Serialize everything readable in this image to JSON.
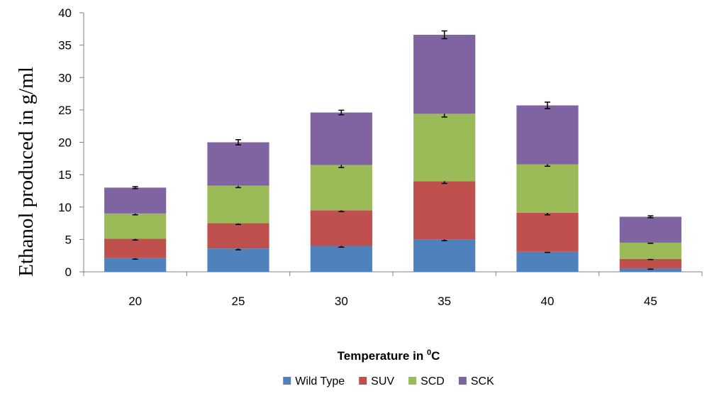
{
  "chart_data": {
    "type": "bar",
    "stacked": true,
    "categories": [
      "20",
      "25",
      "30",
      "35",
      "40",
      "45"
    ],
    "series": [
      {
        "name": "Wild Type",
        "color": "#4F81BD",
        "values": [
          2.1,
          3.6,
          4.0,
          5.0,
          3.1,
          0.5
        ],
        "error": [
          0.15,
          0.2,
          0.2,
          0.2,
          0.1,
          0.1
        ]
      },
      {
        "name": "SUV",
        "color": "#C0504D",
        "values": [
          3.0,
          3.9,
          5.5,
          9.0,
          6.0,
          1.5
        ],
        "error": [
          0.2,
          0.2,
          0.2,
          0.35,
          0.3,
          0.1
        ]
      },
      {
        "name": "SCD",
        "color": "#9BBB59",
        "values": [
          3.9,
          5.8,
          7.0,
          10.4,
          7.5,
          2.5
        ],
        "error": [
          0.2,
          0.3,
          0.4,
          0.5,
          0.3,
          0.1
        ]
      },
      {
        "name": "SCK",
        "color": "#8064A2",
        "values": [
          4.0,
          6.7,
          8.1,
          12.2,
          9.1,
          4.0
        ],
        "error": [
          0.15,
          0.4,
          0.35,
          0.6,
          0.5,
          0.15
        ]
      }
    ],
    "xlabel": "Temperature in ",
    "xlabel_sup": "0",
    "xlabel_suffix": "C",
    "ylabel": "Ethanol produced in g/ml",
    "ylim": [
      0,
      40
    ],
    "yticks": [
      "0",
      "5",
      "10",
      "15",
      "20",
      "25",
      "30",
      "35",
      "40"
    ],
    "grid": false,
    "legend_position": "bottom",
    "axis_color": "#808080"
  }
}
